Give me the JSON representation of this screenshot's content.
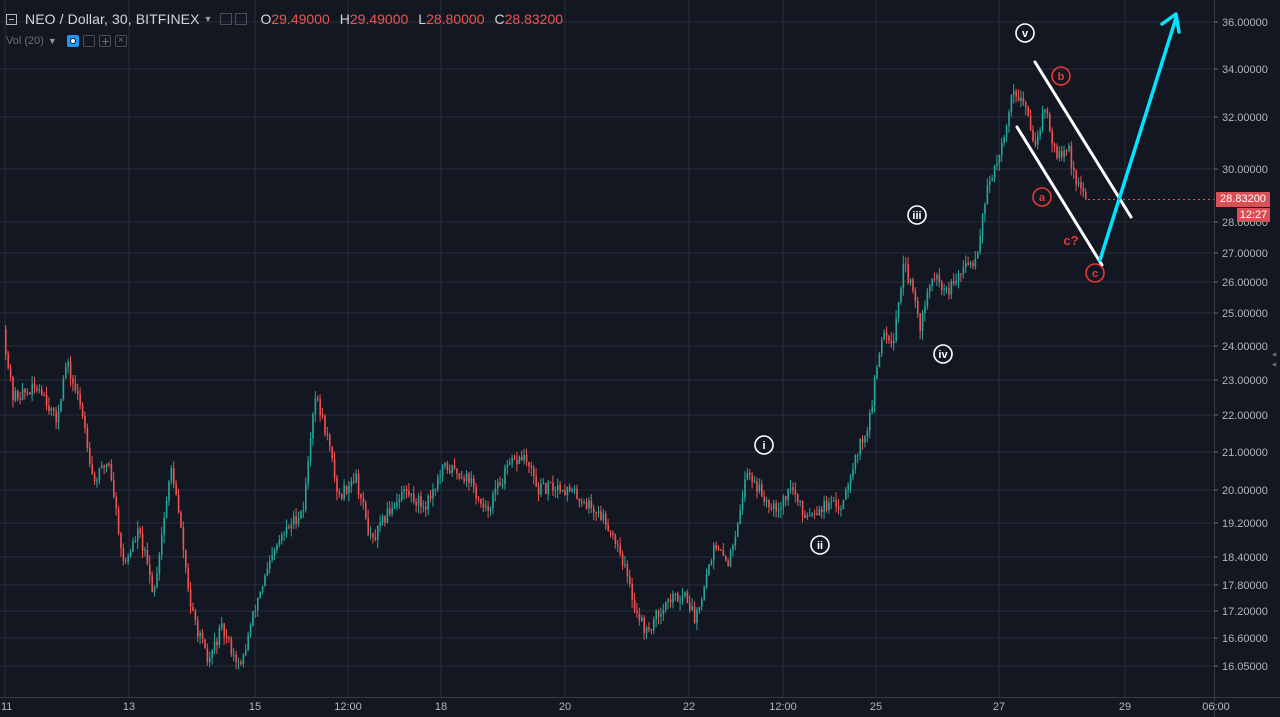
{
  "header": {
    "symbol": "NEO / Dollar, 30, BITFINEX",
    "ohlc": [
      {
        "key": "O",
        "value": "29.49000"
      },
      {
        "key": "H",
        "value": "29.49000"
      },
      {
        "key": "L",
        "value": "28.80000"
      },
      {
        "key": "C",
        "value": "28.83200"
      }
    ],
    "volume_label": "Vol (20)"
  },
  "price_axis": {
    "ticks": [
      "36.00000",
      "34.00000",
      "32.00000",
      "30.00000",
      "28.00000",
      "27.00000",
      "26.00000",
      "25.00000",
      "24.00000",
      "23.00000",
      "22.00000",
      "21.00000",
      "20.00000",
      "19.20000",
      "18.40000",
      "17.80000",
      "17.20000",
      "16.60000",
      "16.05000"
    ],
    "last_price": "28.83200",
    "countdown": "12:27"
  },
  "time_axis": {
    "labels": [
      "11",
      "13",
      "15",
      "12:00",
      "18",
      "20",
      "22",
      "12:00",
      "25",
      "27",
      "29",
      "06:00"
    ]
  },
  "colors": {
    "background": "#131722",
    "up": "#26a69a",
    "down": "#ef5350",
    "grid": "#2a2e39",
    "projection": "#00e5ff",
    "channel": "#ffffff",
    "wave_white": "#ffffff",
    "wave_red": "#e53935"
  },
  "chart_data": {
    "type": "candlestick",
    "interval": "30",
    "ylim": [
      15.9,
      36.6
    ],
    "scale": "log",
    "path": [
      {
        "t": 0.0,
        "p": 24.5
      },
      {
        "t": 0.6,
        "p": 22.5
      },
      {
        "t": 2.5,
        "p": 22.8
      },
      {
        "t": 3.5,
        "p": 21.8
      },
      {
        "t": 4.2,
        "p": 23.5
      },
      {
        "t": 5.3,
        "p": 22.0
      },
      {
        "t": 6.0,
        "p": 20.2
      },
      {
        "t": 7.0,
        "p": 20.8
      },
      {
        "t": 8.0,
        "p": 18.2
      },
      {
        "t": 9.0,
        "p": 19.0
      },
      {
        "t": 10.0,
        "p": 17.6
      },
      {
        "t": 11.2,
        "p": 20.6
      },
      {
        "t": 12.5,
        "p": 17.2
      },
      {
        "t": 13.6,
        "p": 16.1
      },
      {
        "t": 14.5,
        "p": 16.8
      },
      {
        "t": 15.8,
        "p": 16.0
      },
      {
        "t": 17.0,
        "p": 17.6
      },
      {
        "t": 18.4,
        "p": 18.8
      },
      {
        "t": 20.0,
        "p": 19.6
      },
      {
        "t": 20.7,
        "p": 22.6
      },
      {
        "t": 21.5,
        "p": 21.5
      },
      {
        "t": 22.3,
        "p": 19.8
      },
      {
        "t": 23.4,
        "p": 20.4
      },
      {
        "t": 24.5,
        "p": 18.7
      },
      {
        "t": 25.5,
        "p": 19.4
      },
      {
        "t": 26.6,
        "p": 20.0
      },
      {
        "t": 28.0,
        "p": 19.6
      },
      {
        "t": 29.4,
        "p": 20.6
      },
      {
        "t": 31.0,
        "p": 20.3
      },
      {
        "t": 32.0,
        "p": 19.4
      },
      {
        "t": 33.6,
        "p": 20.6
      },
      {
        "t": 34.6,
        "p": 20.9
      },
      {
        "t": 35.6,
        "p": 20.0
      },
      {
        "t": 37.0,
        "p": 20.1
      },
      {
        "t": 38.4,
        "p": 19.8
      },
      {
        "t": 40.0,
        "p": 19.3
      },
      {
        "t": 41.0,
        "p": 18.6
      },
      {
        "t": 42.0,
        "p": 17.3
      },
      {
        "t": 42.8,
        "p": 16.7
      },
      {
        "t": 44.0,
        "p": 17.4
      },
      {
        "t": 45.4,
        "p": 17.6
      },
      {
        "t": 46.0,
        "p": 17.0
      },
      {
        "t": 47.2,
        "p": 18.6
      },
      {
        "t": 48.3,
        "p": 18.3
      },
      {
        "t": 49.5,
        "p": 20.5
      },
      {
        "t": 50.6,
        "p": 19.8
      },
      {
        "t": 51.6,
        "p": 19.6
      },
      {
        "t": 52.4,
        "p": 20.1
      },
      {
        "t": 53.2,
        "p": 19.4
      },
      {
        "t": 54.5,
        "p": 19.6
      },
      {
        "t": 55.7,
        "p": 19.6
      },
      {
        "t": 56.6,
        "p": 20.8
      },
      {
        "t": 57.6,
        "p": 21.8
      },
      {
        "t": 58.5,
        "p": 24.5
      },
      {
        "t": 59.2,
        "p": 24.2
      },
      {
        "t": 59.9,
        "p": 26.6
      },
      {
        "t": 60.4,
        "p": 25.8
      },
      {
        "t": 61.0,
        "p": 24.6
      },
      {
        "t": 61.8,
        "p": 26.2
      },
      {
        "t": 62.8,
        "p": 25.6
      },
      {
        "t": 63.8,
        "p": 26.4
      },
      {
        "t": 64.7,
        "p": 26.8
      },
      {
        "t": 65.5,
        "p": 29.5
      },
      {
        "t": 66.2,
        "p": 30.2
      },
      {
        "t": 67.2,
        "p": 33.2
      },
      {
        "t": 67.9,
        "p": 32.5
      },
      {
        "t": 68.6,
        "p": 31.0
      },
      {
        "t": 69.3,
        "p": 32.4
      },
      {
        "t": 70.0,
        "p": 30.4
      },
      {
        "t": 70.8,
        "p": 30.8
      },
      {
        "t": 71.5,
        "p": 29.3
      },
      {
        "t": 72.0,
        "p": 28.83
      }
    ],
    "channel_lines": [
      {
        "from": {
          "x": 1035,
          "y": 62
        },
        "to": {
          "x": 1131,
          "y": 217
        }
      },
      {
        "from": {
          "x": 1017,
          "y": 127
        },
        "to": {
          "x": 1102,
          "y": 265
        }
      }
    ],
    "projection": {
      "points": [
        {
          "x": 1100,
          "y": 260
        },
        {
          "x": 1176,
          "y": 18
        }
      ]
    },
    "annotations": [
      {
        "label": "v",
        "style": "circle-white"
      },
      {
        "label": "iii",
        "style": "circle-white"
      },
      {
        "label": "iv",
        "style": "circle-white"
      },
      {
        "label": "i",
        "style": "circle-white"
      },
      {
        "label": "ii",
        "style": "circle-white"
      },
      {
        "label": "b",
        "style": "circle-red"
      },
      {
        "label": "a",
        "style": "circle-red"
      },
      {
        "label": "c",
        "style": "circle-red"
      },
      {
        "label": "c?",
        "style": "text-red"
      }
    ]
  }
}
